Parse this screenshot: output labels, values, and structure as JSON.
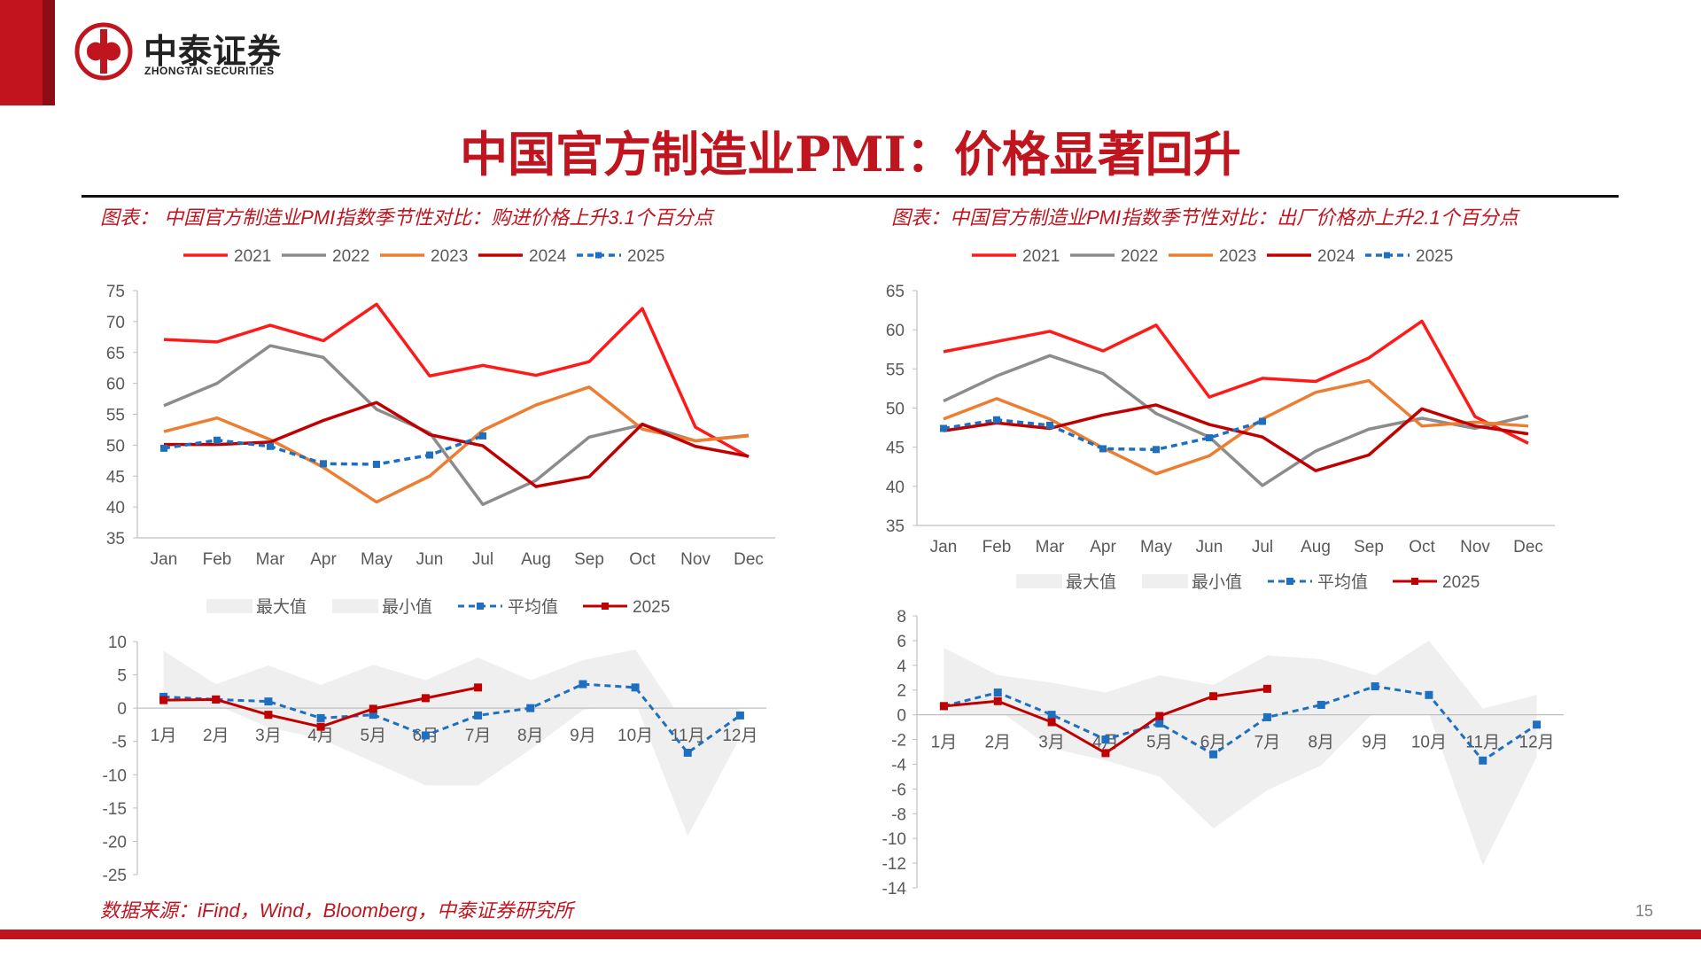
{
  "brand": {
    "name_cn": "中泰证券",
    "name_en": "ZHONGTAI SECURITIES"
  },
  "page": {
    "title": "中国官方制造业PMI：价格显著回升",
    "number": "15"
  },
  "captions": {
    "left": "图表： 中国官方制造业PMI指数季节性对比：购进价格上升3.1个百分点",
    "right": "图表：中国官方制造业PMI指数季节性对比：出厂价格亦上升2.1个百分点"
  },
  "source": "数据来源：iFind，Wind，Bloomberg，中泰证券研究所",
  "colors": {
    "accent": "#c0151f",
    "s2021": "#ff1a1a",
    "s2022": "#8c8c8c",
    "s2023": "#ed7d31",
    "s2024": "#c00000",
    "s2025": "#1f6fc1",
    "band": "#efefef"
  },
  "chart_data": [
    {
      "type": "line",
      "categories": [
        "Jan",
        "Feb",
        "Mar",
        "Apr",
        "May",
        "Jun",
        "Jul",
        "Aug",
        "Sep",
        "Oct",
        "Nov",
        "Dec"
      ],
      "ylim": [
        35,
        75
      ],
      "yticks": [
        35,
        40,
        45,
        50,
        55,
        60,
        65,
        70,
        75
      ],
      "legend": "top",
      "series": [
        {
          "name": "2021",
          "values": [
            67.1,
            66.7,
            69.4,
            66.9,
            72.8,
            61.2,
            62.9,
            61.3,
            63.5,
            72.1,
            52.9,
            48.1
          ]
        },
        {
          "name": "2022",
          "values": [
            56.4,
            60.0,
            66.1,
            64.2,
            55.8,
            52.0,
            40.4,
            44.3,
            51.3,
            53.3,
            50.7,
            51.6
          ]
        },
        {
          "name": "2023",
          "values": [
            52.2,
            54.4,
            50.9,
            46.4,
            40.8,
            45.0,
            52.4,
            56.5,
            59.4,
            52.6,
            50.7,
            51.5
          ]
        },
        {
          "name": "2024",
          "values": [
            50.1,
            50.1,
            50.5,
            54.0,
            56.9,
            51.7,
            49.9,
            43.3,
            44.9,
            53.4,
            49.8,
            48.2
          ]
        },
        {
          "name": "2025",
          "dashed": true,
          "values": [
            49.5,
            50.8,
            49.8,
            47.0,
            46.9,
            48.4,
            51.5,
            null,
            null,
            null,
            null,
            null
          ]
        }
      ]
    },
    {
      "type": "line",
      "categories": [
        "Jan",
        "Feb",
        "Mar",
        "Apr",
        "May",
        "Jun",
        "Jul",
        "Aug",
        "Sep",
        "Oct",
        "Nov",
        "Dec"
      ],
      "ylim": [
        35,
        65
      ],
      "yticks": [
        35,
        40,
        45,
        50,
        55,
        60,
        65
      ],
      "legend": "top",
      "series": [
        {
          "name": "2021",
          "values": [
            57.2,
            58.5,
            59.8,
            57.3,
            60.6,
            51.4,
            53.8,
            53.4,
            56.4,
            61.1,
            48.9,
            45.5
          ]
        },
        {
          "name": "2022",
          "values": [
            50.9,
            54.1,
            56.7,
            54.4,
            49.3,
            46.3,
            40.1,
            44.5,
            47.3,
            48.7,
            47.4,
            49.0
          ]
        },
        {
          "name": "2023",
          "values": [
            48.6,
            51.2,
            48.6,
            44.9,
            41.6,
            43.9,
            48.6,
            52.0,
            53.5,
            47.7,
            48.2,
            47.7
          ]
        },
        {
          "name": "2024",
          "values": [
            47.1,
            48.1,
            47.4,
            49.1,
            50.4,
            47.9,
            46.3,
            42.0,
            44.0,
            49.9,
            47.7,
            46.7
          ]
        },
        {
          "name": "2025",
          "dashed": true,
          "values": [
            47.4,
            48.5,
            47.8,
            44.8,
            44.7,
            46.2,
            48.3,
            null,
            null,
            null,
            null,
            null
          ]
        }
      ]
    },
    {
      "type": "area",
      "categories": [
        "1月",
        "2月",
        "3月",
        "4月",
        "5月",
        "6月",
        "7月",
        "8月",
        "9月",
        "10月",
        "11月",
        "12月"
      ],
      "ylim": [
        -25,
        10
      ],
      "yticks": [
        -25,
        -20,
        -15,
        -10,
        -5,
        0,
        5,
        10
      ],
      "legend": "top",
      "max_values": [
        8.6,
        3.6,
        6.4,
        3.5,
        6.5,
        4.2,
        7.6,
        4.2,
        7.2,
        8.8,
        -3.0,
        -0.9
      ],
      "min_values": [
        0.3,
        0.5,
        -2.9,
        -4.6,
        -8.1,
        -11.6,
        -11.6,
        -6.2,
        -0.3,
        0.9,
        -19.2,
        -4.4
      ],
      "series": [
        {
          "name": "最大值",
          "band": "max"
        },
        {
          "name": "最小值",
          "band": "min"
        },
        {
          "name": "平均值",
          "dashed": true,
          "values": [
            1.7,
            1.3,
            1.0,
            -1.5,
            -1.0,
            -4.1,
            -1.1,
            0.0,
            3.6,
            3.1,
            -6.7,
            -1.1
          ]
        },
        {
          "name": "2025",
          "values": [
            1.2,
            1.3,
            -1.0,
            -2.8,
            -0.1,
            1.5,
            3.1,
            null,
            null,
            null,
            null,
            null
          ]
        }
      ]
    },
    {
      "type": "area",
      "categories": [
        "1月",
        "2月",
        "3月",
        "4月",
        "5月",
        "6月",
        "7月",
        "8月",
        "9月",
        "10月",
        "11月",
        "12月"
      ],
      "ylim": [
        -14,
        8
      ],
      "yticks": [
        -14,
        -12,
        -10,
        -8,
        -6,
        -4,
        -2,
        0,
        2,
        4,
        6,
        8
      ],
      "legend": "top",
      "max_values": [
        5.4,
        3.2,
        2.6,
        1.8,
        3.2,
        2.4,
        4.8,
        4.5,
        3.2,
        6.0,
        0.5,
        1.6
      ],
      "min_values": [
        0.2,
        0.4,
        -2.7,
        -3.7,
        -5.0,
        -9.2,
        -6.1,
        -4.1,
        0.3,
        0.1,
        -12.2,
        -3.4
      ],
      "series": [
        {
          "name": "最大值",
          "band": "max"
        },
        {
          "name": "最小值",
          "band": "min"
        },
        {
          "name": "平均值",
          "dashed": true,
          "values": [
            0.7,
            1.8,
            0.0,
            -2.0,
            -0.7,
            -3.2,
            -0.2,
            0.8,
            2.3,
            1.6,
            -3.7,
            -0.8
          ]
        },
        {
          "name": "2025",
          "values": [
            0.7,
            1.1,
            -0.6,
            -3.1,
            -0.1,
            1.5,
            2.1,
            null,
            null,
            null,
            null,
            null
          ]
        }
      ]
    }
  ]
}
